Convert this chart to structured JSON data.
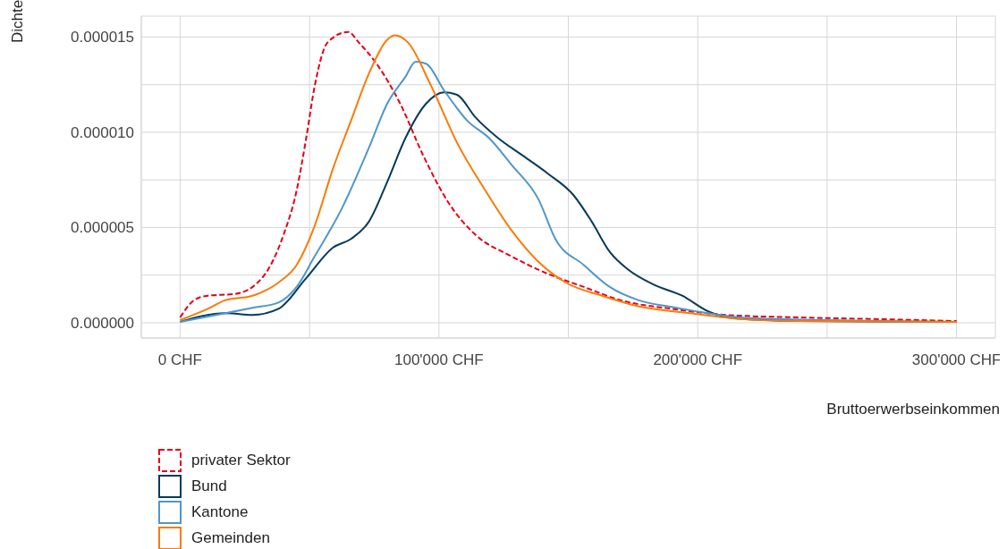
{
  "chart_data": {
    "type": "line",
    "xlabel": "Bruttoerwerbseinkommen",
    "ylabel": "Dichte",
    "marker": "none",
    "grid": true,
    "legend": "bottom",
    "xlim": [
      -15000,
      315000
    ],
    "ylim": [
      -8e-07,
      1.61e-05
    ],
    "xticks": [
      {
        "value": 0,
        "label": "0 CHF"
      },
      {
        "value": 50000,
        "label": null
      },
      {
        "value": 100000,
        "label": "100'000 CHF"
      },
      {
        "value": 150000,
        "label": null
      },
      {
        "value": 200000,
        "label": "200'000 CHF"
      },
      {
        "value": 250000,
        "label": null
      },
      {
        "value": 300000,
        "label": "300'000 CHF"
      }
    ],
    "yticks": [
      {
        "value": 0,
        "label": "0.000000"
      },
      {
        "value": 2.5e-06,
        "label": null
      },
      {
        "value": 5e-06,
        "label": "0.000005"
      },
      {
        "value": 7.5e-06,
        "label": null
      },
      {
        "value": 1e-05,
        "label": "0.000010"
      },
      {
        "value": 1.25e-05,
        "label": null
      },
      {
        "value": 1.5e-05,
        "label": "0.000015"
      }
    ],
    "series": [
      {
        "name": "privater Sektor",
        "color": "#e3001b",
        "line_style": "dashed",
        "x": [
          0,
          5500,
          10700,
          21000,
          28000,
          35000,
          40000,
          45000,
          48700,
          52000,
          57000,
          65000,
          69000,
          76000,
          85000,
          94000,
          104000,
          114000,
          128000,
          142000,
          156000,
          170000,
          190000,
          211000,
          239000,
          273000,
          300000
        ],
        "values": [
          2.8e-07,
          1.19e-06,
          1.42e-06,
          1.51e-06,
          1.88e-06,
          3.03e-06,
          4.63e-06,
          6.93e-06,
          9.68e-06,
          1.243e-05,
          1.472e-05,
          1.527e-05,
          1.472e-05,
          1.358e-05,
          1.151e-05,
          8.76e-06,
          6.24e-06,
          4.63e-06,
          3.49e-06,
          2.57e-06,
          1.88e-06,
          1.19e-06,
          7.3e-07,
          4.1e-07,
          2.8e-07,
          1.8e-07,
          9e-08
        ]
      },
      {
        "name": "Bund",
        "color": "#063a5a",
        "line_style": "solid",
        "x": [
          0,
          17600,
          28000,
          38000,
          48700,
          59000,
          66000,
          73000,
          80000,
          87000,
          95000,
          102000,
          107000,
          114000,
          123000,
          131600,
          142000,
          152000,
          159000,
          166000,
          173000,
          183000,
          194000,
          204000,
          214500,
          239000,
          300000
        ],
        "values": [
          5e-08,
          5e-07,
          4.1e-07,
          7.3e-07,
          2.34e-06,
          3.94e-06,
          4.4e-06,
          5.32e-06,
          7.39e-06,
          9.68e-06,
          1.15e-05,
          1.21e-05,
          1.197e-05,
          1.08e-05,
          9.68e-06,
          8.85e-06,
          7.84e-06,
          6.7e-06,
          5.32e-06,
          3.72e-06,
          2.8e-06,
          2e-06,
          1.42e-06,
          6e-07,
          2.3e-07,
          9e-08,
          5e-08
        ]
      },
      {
        "name": "Kantone",
        "color": "#4f97cb",
        "line_style": "solid",
        "x": [
          0,
          14000,
          28000,
          38000,
          45000,
          52000,
          62500,
          73000,
          80000,
          87000,
          91000,
          95000,
          102000,
          111000,
          119500,
          128000,
          138500,
          145000,
          156000,
          166000,
          177000,
          190000,
          204000,
          221000,
          300000
        ],
        "values": [
          5e-08,
          4.1e-07,
          7.8e-07,
          1.06e-06,
          1.88e-06,
          3.49e-06,
          6e-06,
          9.2e-06,
          1.15e-05,
          1.29e-05,
          1.37e-05,
          1.36e-05,
          1.22e-05,
          1.06e-05,
          9.68e-06,
          8.3e-06,
          6.47e-06,
          4.4e-06,
          3.03e-06,
          1.88e-06,
          1.19e-06,
          8.3e-07,
          5e-07,
          2.3e-07,
          5e-08
        ]
      },
      {
        "name": "Gemeinden",
        "color": "#fb7a06",
        "line_style": "solid",
        "x": [
          0,
          10700,
          17600,
          28000,
          38000,
          45000,
          52000,
          59000,
          66000,
          73000,
          80000,
          83000,
          88000,
          97000,
          107000,
          118000,
          128000,
          138000,
          149000,
          163000,
          177000,
          197000,
          218000,
          239000,
          300000
        ],
        "values": [
          1.4e-07,
          7.3e-07,
          1.19e-06,
          1.42e-06,
          2.11e-06,
          3.03e-06,
          5.09e-06,
          8.07e-06,
          1.06e-05,
          1.31e-05,
          1.486e-05,
          1.509e-05,
          1.472e-05,
          1.243e-05,
          9.45e-06,
          6.93e-06,
          4.86e-06,
          3.26e-06,
          2.11e-06,
          1.42e-06,
          8.7e-07,
          5e-07,
          1.8e-07,
          9e-08,
          5e-08
        ]
      }
    ]
  }
}
